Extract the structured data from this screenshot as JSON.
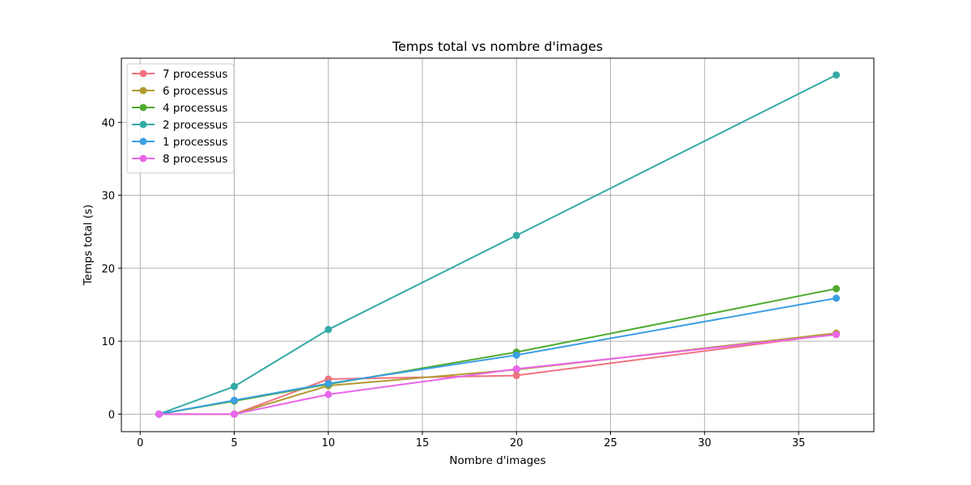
{
  "chart_data": {
    "type": "line",
    "title": "Temps total vs nombre d'images",
    "xlabel": "Nombre d'images",
    "ylabel": "Temps total (s)",
    "x": [
      1,
      5,
      10,
      20,
      37
    ],
    "xlim": [
      -1,
      39
    ],
    "ylim": [
      -2.4,
      48.8
    ],
    "xticks": [
      0,
      5,
      10,
      15,
      20,
      25,
      30,
      35
    ],
    "yticks": [
      0,
      10,
      20,
      30,
      40
    ],
    "grid": true,
    "legend_position": "upper-left",
    "series": [
      {
        "name": "7 processus",
        "color": "#f07380",
        "values": [
          0.0,
          0.0,
          4.8,
          5.3,
          11.0
        ]
      },
      {
        "name": "6 processus",
        "color": "#b39a32",
        "values": [
          0.0,
          0.0,
          3.9,
          6.1,
          11.1
        ]
      },
      {
        "name": "4 processus",
        "color": "#4eab2f",
        "values": [
          0.0,
          1.8,
          4.1,
          8.5,
          17.2
        ]
      },
      {
        "name": "2 processus",
        "color": "#34aba4",
        "values": [
          0.0,
          3.8,
          11.6,
          24.5,
          46.5
        ]
      },
      {
        "name": "1 processus",
        "color": "#3b9fe3",
        "values": [
          0.0,
          1.9,
          4.2,
          8.1,
          15.9
        ]
      },
      {
        "name": "8 processus",
        "color": "#e966ec",
        "values": [
          0.0,
          0.0,
          2.7,
          6.2,
          10.9
        ]
      }
    ]
  }
}
